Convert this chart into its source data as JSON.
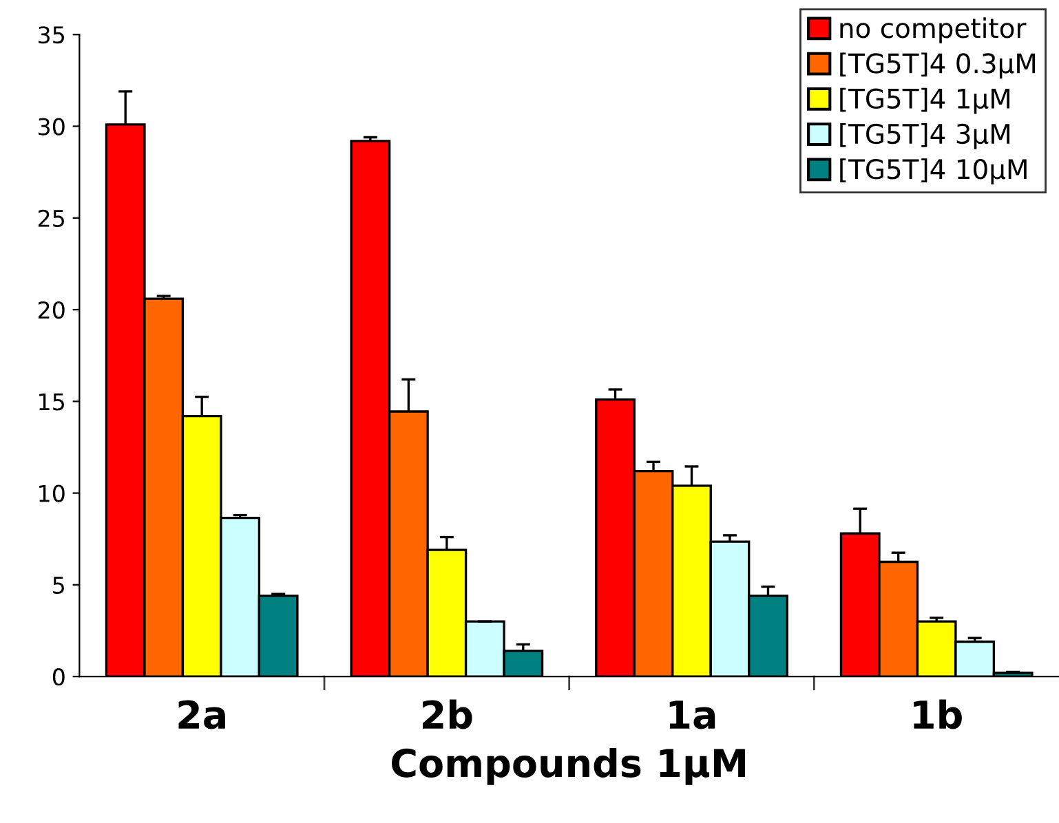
{
  "chart_data": {
    "type": "bar",
    "xlabel": "Compounds 1µM",
    "categories": [
      "2a",
      "2b",
      "1a",
      "1b"
    ],
    "series": [
      {
        "name": "no competitor",
        "color": "#ff0000",
        "values": [
          30.1,
          29.2,
          15.1,
          7.8
        ],
        "errors": [
          [
            30.1,
            31.9
          ],
          [
            29.2,
            29.4
          ],
          [
            15.1,
            15.65
          ],
          [
            7.8,
            9.15
          ]
        ]
      },
      {
        "name": "[TG5T]4 0.3µM",
        "color": "#ff6600",
        "values": [
          20.6,
          14.45,
          11.2,
          6.25
        ],
        "errors": [
          [
            20.6,
            20.75
          ],
          [
            14.45,
            16.2
          ],
          [
            11.2,
            11.7
          ],
          [
            6.25,
            6.75
          ]
        ]
      },
      {
        "name": "[TG5T]4 1µM",
        "color": "#ffff00",
        "values": [
          14.2,
          6.9,
          10.4,
          3.0
        ],
        "errors": [
          [
            14.2,
            15.25
          ],
          [
            6.9,
            7.6
          ],
          [
            10.4,
            11.45
          ],
          [
            3.0,
            3.2
          ]
        ]
      },
      {
        "name": "[TG5T]4 3µM",
        "color": "#ccffff",
        "values": [
          8.65,
          3.0,
          7.35,
          1.9
        ],
        "errors": [
          [
            8.65,
            8.8
          ],
          [
            3.0,
            3.0
          ],
          [
            7.35,
            7.7
          ],
          [
            1.9,
            2.1
          ]
        ]
      },
      {
        "name": "[TG5T]4 10µM",
        "color": "#008080",
        "values": [
          4.4,
          1.4,
          4.4,
          0.2
        ],
        "errors": [
          [
            4.4,
            4.5
          ],
          [
            1.4,
            1.75
          ],
          [
            4.4,
            4.9
          ],
          [
            0.2,
            0.25
          ]
        ]
      }
    ],
    "ylim": [
      0,
      35
    ],
    "yticks": [
      0,
      5,
      10,
      15,
      20,
      25,
      30,
      35
    ],
    "grid": false,
    "legend": "top right"
  }
}
